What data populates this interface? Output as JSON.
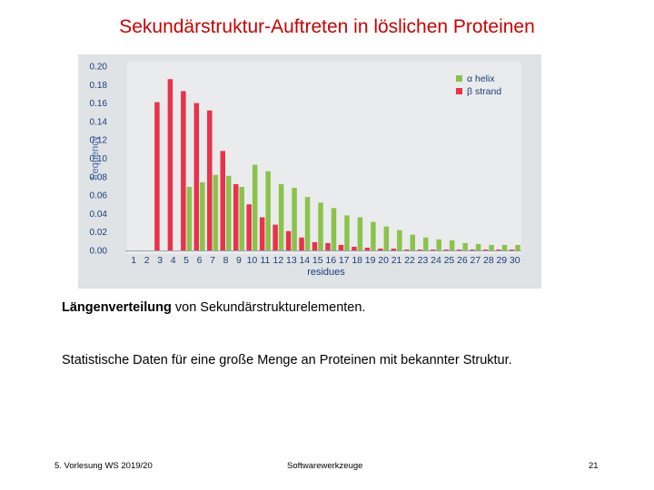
{
  "slide": {
    "title": "Sekundärstruktur-Auftreten in löslichen Proteinen",
    "caption_bold": "Längenverteilung",
    "caption_rest": " von Sekundärstrukturelementen.",
    "stats_text": "Statistische Daten für eine große Menge an Proteinen mit bekannter Struktur.",
    "footer_left": "5. Vorlesung WS 2019/20",
    "footer_center": "Softwarewerkzeuge",
    "footer_right": "21"
  },
  "chart_data": {
    "type": "bar",
    "xlabel": "residues",
    "ylabel": "frequency",
    "ylim": [
      0,
      0.2
    ],
    "yticks": [
      "0.00",
      "0.02",
      "0.04",
      "0.06",
      "0.08",
      "0.10",
      "0.12",
      "0.14",
      "0.16",
      "0.18",
      "0.20"
    ],
    "categories": [
      "1",
      "2",
      "3",
      "4",
      "5",
      "6",
      "7",
      "8",
      "9",
      "10",
      "11",
      "12",
      "13",
      "14",
      "15",
      "16",
      "17",
      "18",
      "19",
      "20",
      "21",
      "22",
      "23",
      "24",
      "25",
      "26",
      "27",
      "28",
      "29",
      "30"
    ],
    "series": [
      {
        "name": "α helix",
        "color": "#8bc34a",
        "values": [
          0,
          0,
          0,
          0,
          0.069,
          0.074,
          0.082,
          0.081,
          0.069,
          0.093,
          0.086,
          0.072,
          0.068,
          0.058,
          0.052,
          0.046,
          0.038,
          0.036,
          0.031,
          0.026,
          0.022,
          0.017,
          0.014,
          0.012,
          0.011,
          0.008,
          0.007,
          0.006,
          0.006,
          0.006
        ]
      },
      {
        "name": "β strand",
        "color": "#e8334a",
        "values": [
          0,
          0,
          0.161,
          0.186,
          0.173,
          0.16,
          0.152,
          0.108,
          0.072,
          0.05,
          0.036,
          0.028,
          0.021,
          0.014,
          0.009,
          0.008,
          0.006,
          0.004,
          0.003,
          0.002,
          0.002,
          0.001,
          0.001,
          0.001,
          0.001,
          0.001,
          0.001,
          0.001,
          0.001,
          0.001
        ]
      }
    ],
    "legend_position": "top-right",
    "grid": false
  }
}
